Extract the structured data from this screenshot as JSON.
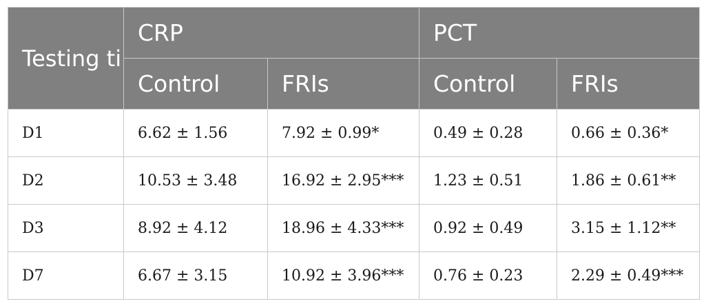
{
  "header": {
    "row_label": "Testing time",
    "groups": [
      "CRP",
      "PCT"
    ],
    "subcolumns": [
      "Control",
      "FRIs",
      "Control",
      "FRIs"
    ]
  },
  "rows": [
    {
      "time": "D1",
      "crp_control": "6.62 ± 1.56",
      "crp_fris": "7.92 ± 0.99*",
      "pct_control": "0.49 ± 0.28",
      "pct_fris": "0.66 ± 0.36*"
    },
    {
      "time": "D2",
      "crp_control": "10.53 ± 3.48",
      "crp_fris": "16.92 ± 2.95***",
      "pct_control": "1.23 ± 0.51",
      "pct_fris": "1.86 ± 0.61**"
    },
    {
      "time": "D3",
      "crp_control": "8.92 ± 4.12",
      "crp_fris": "18.96 ± 4.33***",
      "pct_control": "0.92 ± 0.49",
      "pct_fris": "3.15 ± 1.12**"
    },
    {
      "time": "D7",
      "crp_control": "6.67 ± 3.15",
      "crp_fris": "10.92 ± 3.96***",
      "pct_control": "0.76 ± 0.23",
      "pct_fris": "2.29 ± 0.49***"
    }
  ],
  "colors": {
    "header_bg": "#808080",
    "header_text": "#ffffff",
    "grid": "#c9c9c9"
  }
}
